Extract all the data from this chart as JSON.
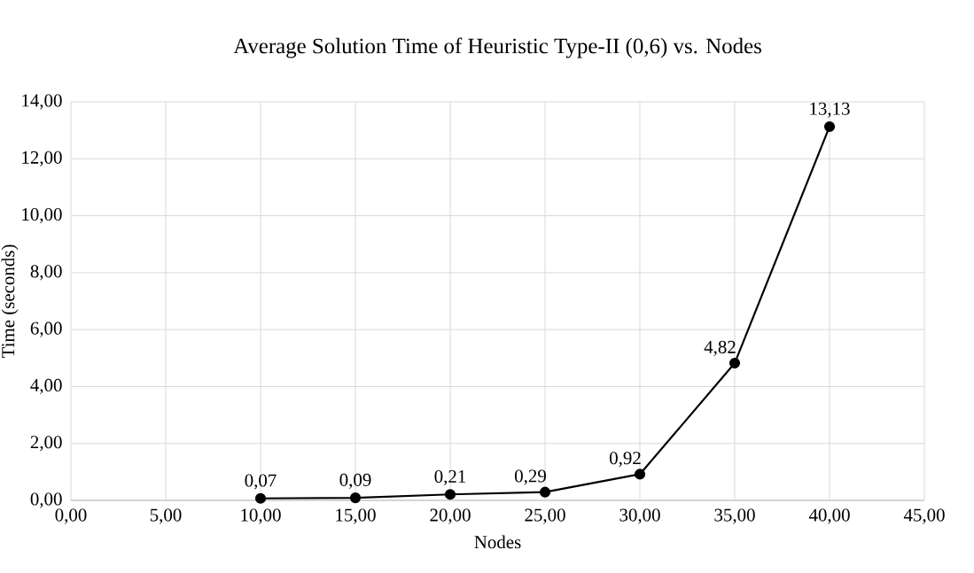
{
  "chart_data": {
    "type": "line",
    "title": "Average Solution Time of Heuristic Type-II (0,6) vs. Nodes",
    "xlabel": "Nodes",
    "ylabel": "Time (seconds)",
    "x": [
      10,
      15,
      20,
      25,
      30,
      35,
      40
    ],
    "series": [
      {
        "color": "#000000",
        "values": [
          0.07,
          0.09,
          0.21,
          0.29,
          0.92,
          4.82,
          13.13
        ],
        "value_labels": [
          "0,07",
          "0,09",
          "0,21",
          "0,29",
          "0,92",
          "4,82",
          "13,13"
        ]
      }
    ],
    "xlim": [
      0,
      45
    ],
    "xticks": [
      {
        "value": 0,
        "label": "0,00"
      },
      {
        "value": 5,
        "label": "5,00"
      },
      {
        "value": 10,
        "label": "10,00"
      },
      {
        "value": 15,
        "label": "15,00"
      },
      {
        "value": 20,
        "label": "20,00"
      },
      {
        "value": 25,
        "label": "25,00"
      },
      {
        "value": 30,
        "label": "30,00"
      },
      {
        "value": 35,
        "label": "35,00"
      },
      {
        "value": 40,
        "label": "40,00"
      },
      {
        "value": 45,
        "label": "45,00"
      }
    ],
    "ylim": [
      0,
      14
    ],
    "yticks": [
      {
        "value": 0,
        "label": "0,00"
      },
      {
        "value": 2,
        "label": "2,00"
      },
      {
        "value": 4,
        "label": "4,00"
      },
      {
        "value": 6,
        "label": "6,00"
      },
      {
        "value": 8,
        "label": "8,00"
      },
      {
        "value": 10,
        "label": "10,00"
      },
      {
        "value": 12,
        "label": "12,00"
      },
      {
        "value": 14,
        "label": "14,00"
      }
    ],
    "grid": true,
    "marker": "circle",
    "line_style": "solid"
  }
}
